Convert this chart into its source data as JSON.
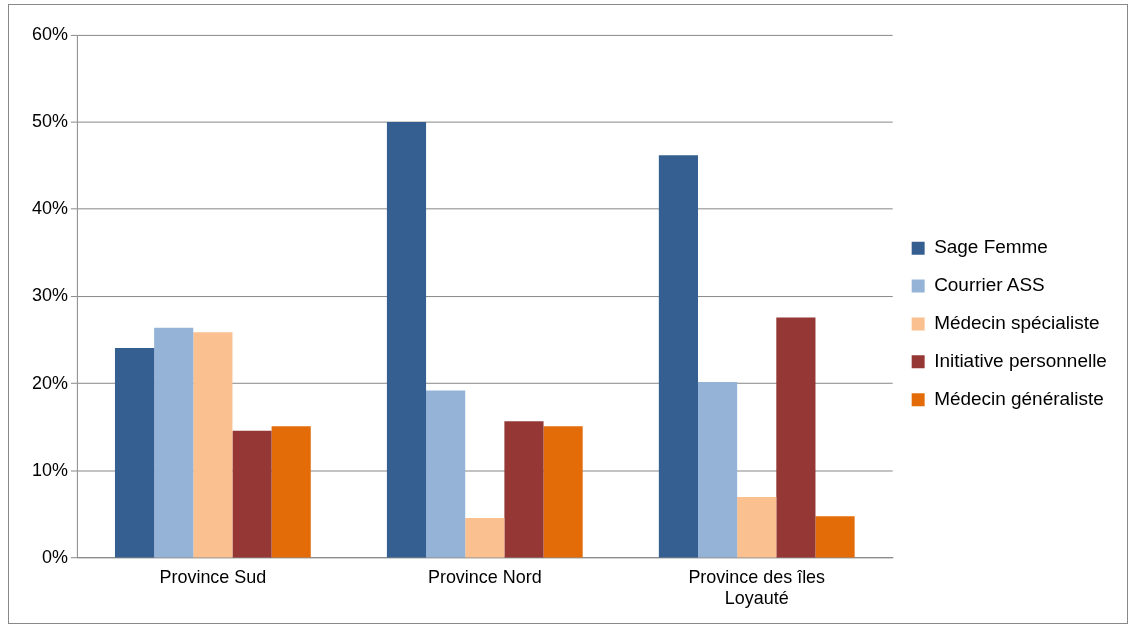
{
  "chart_data": {
    "type": "bar",
    "categories": [
      "Province Sud",
      "Province Nord",
      "Province des îles Loyauté"
    ],
    "series": [
      {
        "name": "Sage Femme",
        "color": "#365f91",
        "values": [
          24.1,
          50.0,
          46.2
        ]
      },
      {
        "name": "Courrier ASS",
        "color": "#95b3d7",
        "values": [
          26.4,
          19.2,
          20.2
        ]
      },
      {
        "name": "Médecin spécialiste",
        "color": "#fac090",
        "values": [
          25.9,
          4.6,
          7.0
        ]
      },
      {
        "name": "Initiative personnelle",
        "color": "#953735",
        "values": [
          14.6,
          15.7,
          27.6
        ]
      },
      {
        "name": "Médecin généraliste",
        "color": "#e36c09",
        "values": [
          15.1,
          15.1,
          4.8
        ]
      }
    ],
    "ylim": [
      0,
      60
    ],
    "yticks": [
      {
        "value": 0,
        "label": "0%"
      },
      {
        "value": 10,
        "label": "10%"
      },
      {
        "value": 20,
        "label": "20%"
      },
      {
        "value": 30,
        "label": "30%"
      },
      {
        "value": 40,
        "label": "40%"
      },
      {
        "value": 50,
        "label": "50%"
      },
      {
        "value": 60,
        "label": "60%"
      }
    ],
    "grid": "y",
    "legend": "right"
  }
}
